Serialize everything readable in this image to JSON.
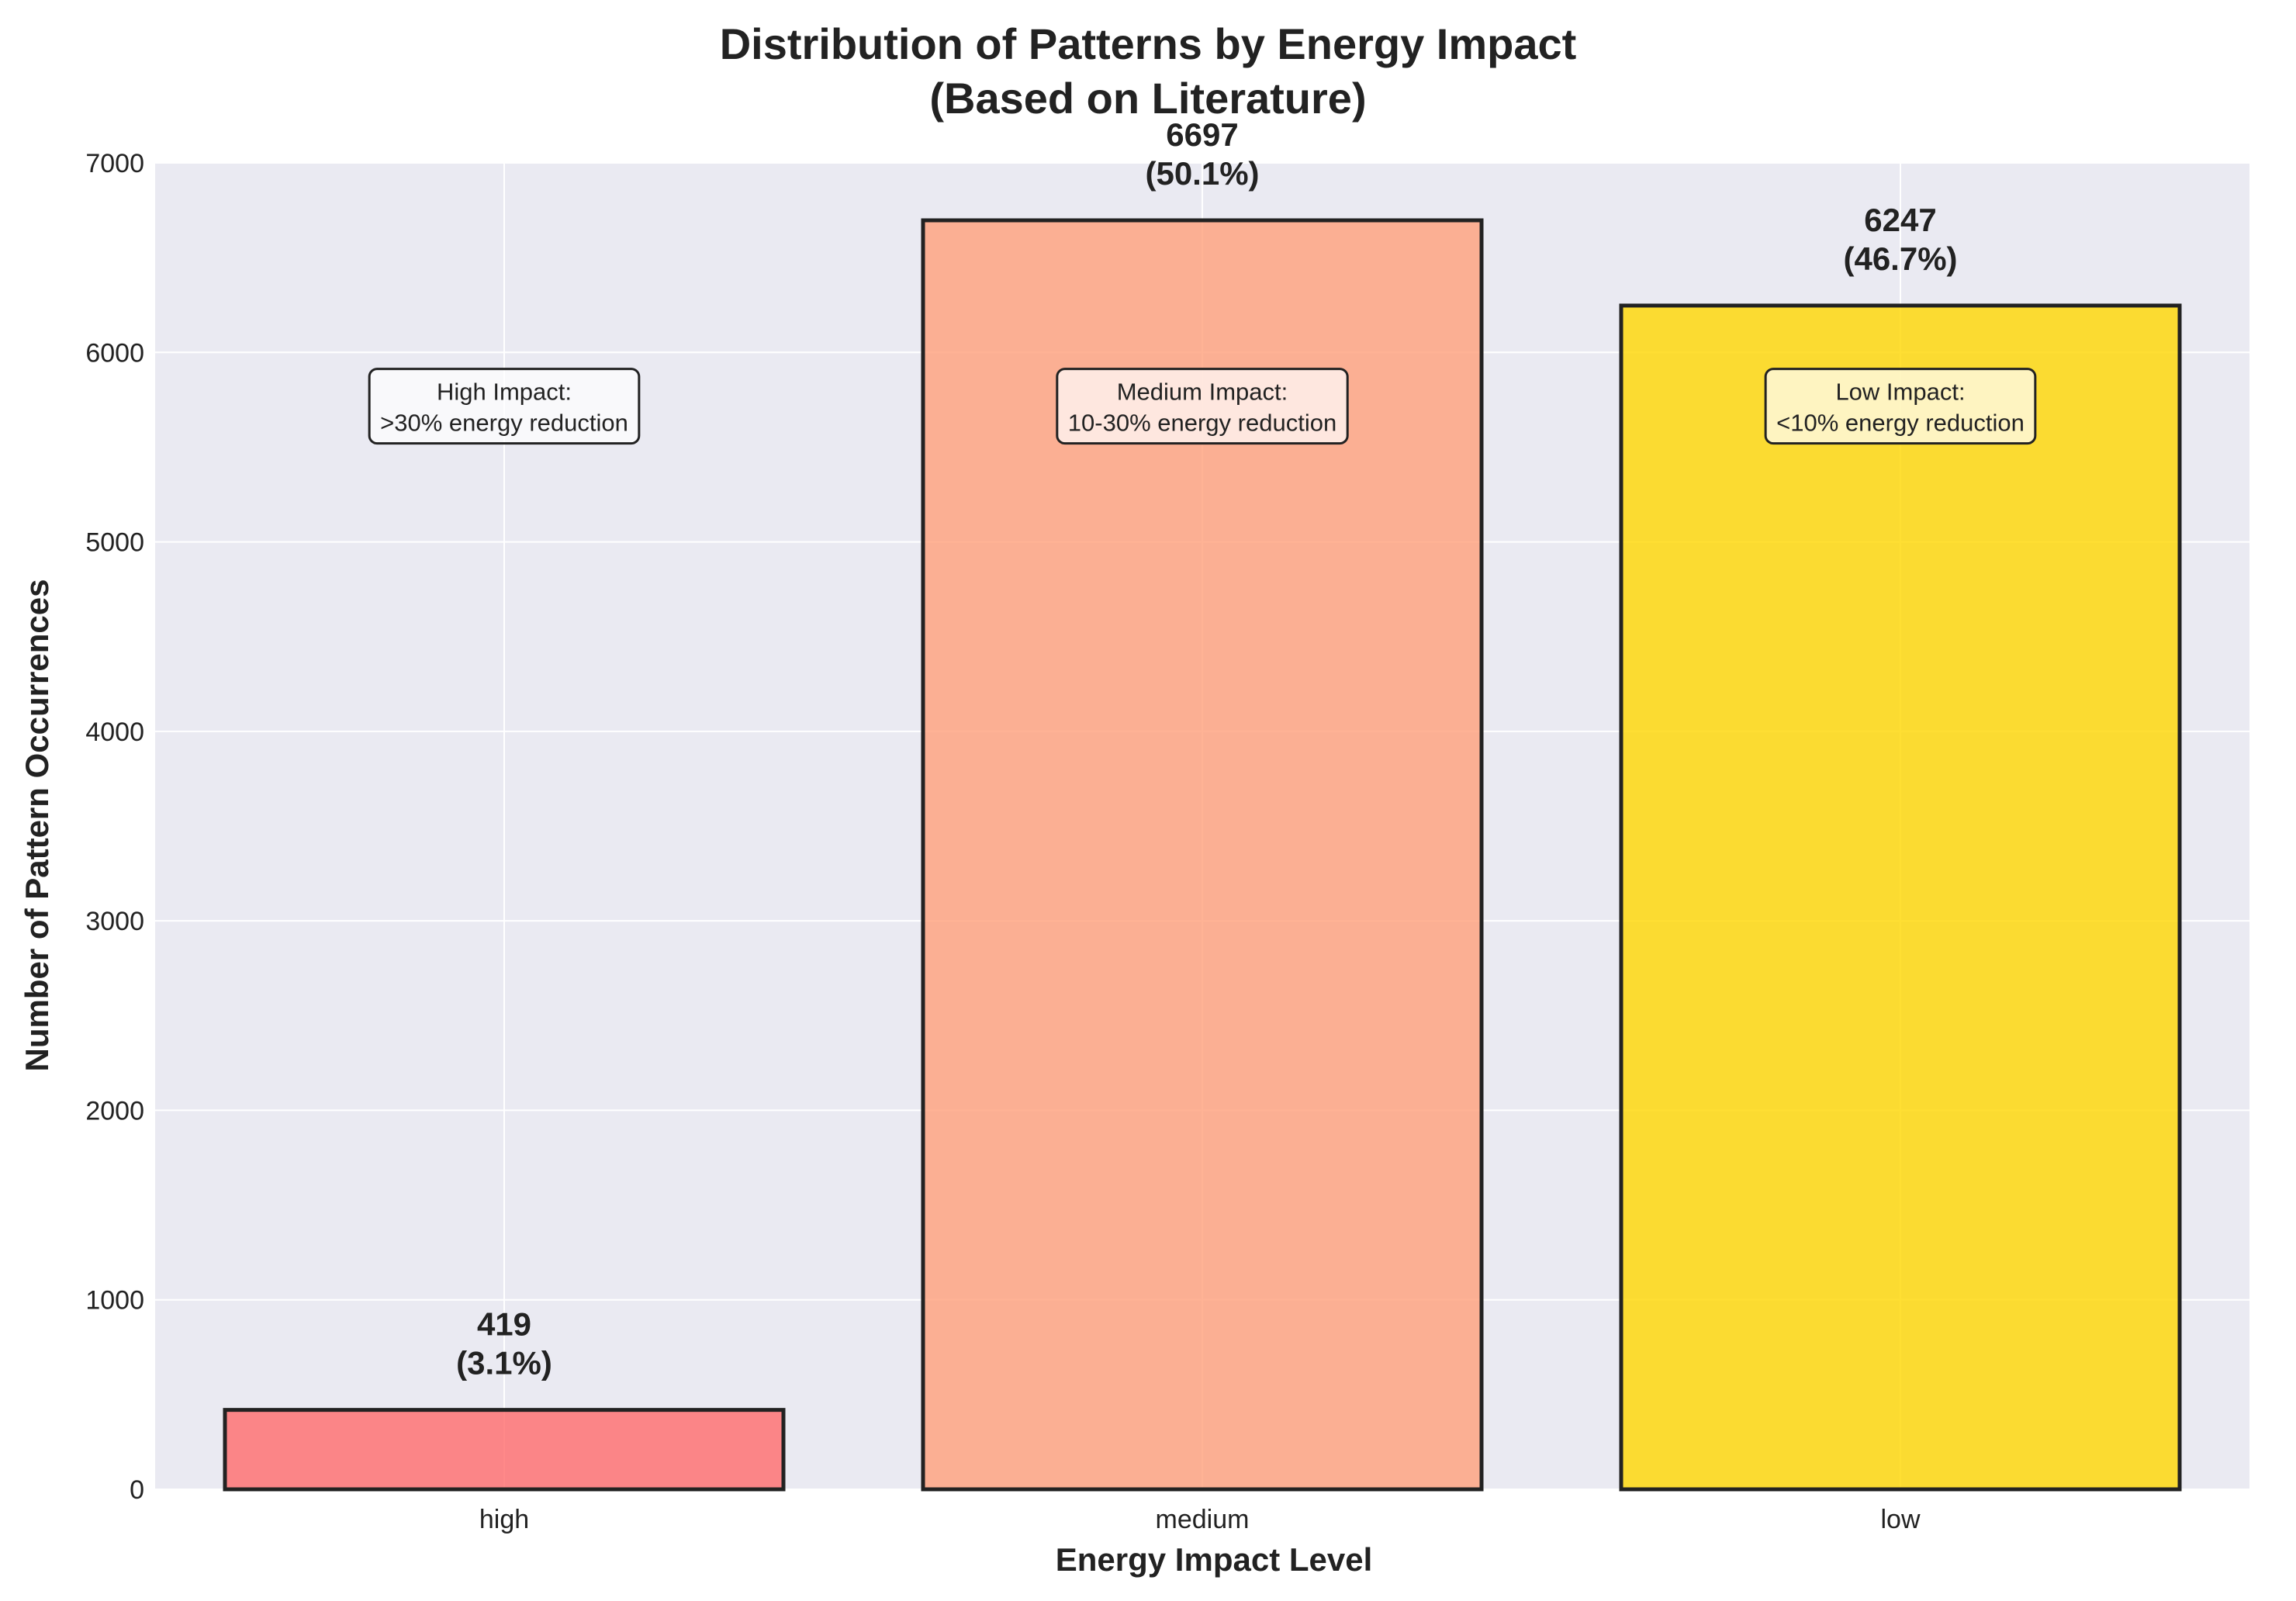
{
  "chart_data": {
    "type": "bar",
    "title": "Distribution of Patterns by Energy Impact",
    "subtitle": "(Based on Literature)",
    "xlabel": "Energy Impact Level",
    "ylabel": "Number of Pattern Occurrences",
    "categories": [
      "high",
      "medium",
      "low"
    ],
    "values": [
      419,
      6697,
      6247
    ],
    "value_labels": [
      "419",
      "6697",
      "6247"
    ],
    "percent_labels": [
      "(3.1%)",
      "(50.1%)",
      "(46.7%)"
    ],
    "colors": [
      "#FF6B6B",
      "#FFA07A",
      "#FFD700"
    ],
    "ylim": [
      0,
      7000
    ],
    "yticks": [
      0,
      1000,
      2000,
      3000,
      4000,
      5000,
      6000,
      7000
    ],
    "grid": true,
    "annotations": [
      {
        "line1": "High Impact:",
        "line2": ">30% energy reduction",
        "y": 5700
      },
      {
        "line1": "Medium Impact:",
        "line2": "10-30% energy reduction",
        "y": 5700
      },
      {
        "line1": "Low Impact:",
        "line2": "<10% energy reduction",
        "y": 5700
      }
    ],
    "background_color": "#EAEAF2",
    "edge_color": "#222222"
  }
}
